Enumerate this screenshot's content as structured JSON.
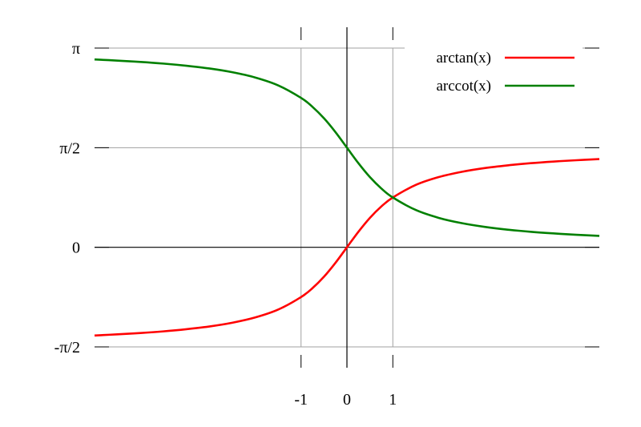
{
  "chart_data": {
    "type": "line",
    "title": "",
    "xlabel": "",
    "ylabel": "",
    "xlim": [
      -5.5,
      5.5
    ],
    "ylim": [
      -1.5708,
      3.1416
    ],
    "grid": true,
    "legend_position": "top-right",
    "x_ticks": [
      {
        "value": -1,
        "label": "-1"
      },
      {
        "value": 0,
        "label": "0"
      },
      {
        "value": 1,
        "label": "1"
      }
    ],
    "y_ticks": [
      {
        "value": 3.1416,
        "label": "π"
      },
      {
        "value": 1.5708,
        "label": "π/2"
      },
      {
        "value": 0,
        "label": "0"
      },
      {
        "value": -1.5708,
        "label": "-π/2"
      }
    ],
    "series": [
      {
        "name": "arctan(x)",
        "color": "#ff0000",
        "x": [
          -5.5,
          -5,
          -4.5,
          -4,
          -3.5,
          -3,
          -2.5,
          -2,
          -1.5,
          -1,
          -0.75,
          -0.5,
          -0.25,
          0,
          0.25,
          0.5,
          0.75,
          1,
          1.5,
          2,
          2.5,
          3,
          3.5,
          4,
          4.5,
          5,
          5.5
        ],
        "y": [
          -1.391,
          -1.373,
          -1.352,
          -1.326,
          -1.292,
          -1.249,
          -1.19,
          -1.107,
          -0.983,
          -0.785,
          -0.644,
          -0.464,
          -0.245,
          0,
          0.245,
          0.464,
          0.644,
          0.785,
          0.983,
          1.107,
          1.19,
          1.249,
          1.292,
          1.326,
          1.352,
          1.373,
          1.391
        ]
      },
      {
        "name": "arccot(x)",
        "color": "#008000",
        "x": [
          -5.5,
          -5,
          -4.5,
          -4,
          -3.5,
          -3,
          -2.5,
          -2,
          -1.5,
          -1,
          -0.75,
          -0.5,
          -0.25,
          0,
          0.25,
          0.5,
          0.75,
          1,
          1.5,
          2,
          2.5,
          3,
          3.5,
          4,
          4.5,
          5,
          5.5
        ],
        "y": [
          2.962,
          2.944,
          2.923,
          2.897,
          2.863,
          2.82,
          2.761,
          2.678,
          2.554,
          2.356,
          2.214,
          2.034,
          1.816,
          1.571,
          1.326,
          1.107,
          0.927,
          0.785,
          0.588,
          0.464,
          0.381,
          0.322,
          0.278,
          0.245,
          0.219,
          0.197,
          0.18
        ]
      }
    ]
  }
}
